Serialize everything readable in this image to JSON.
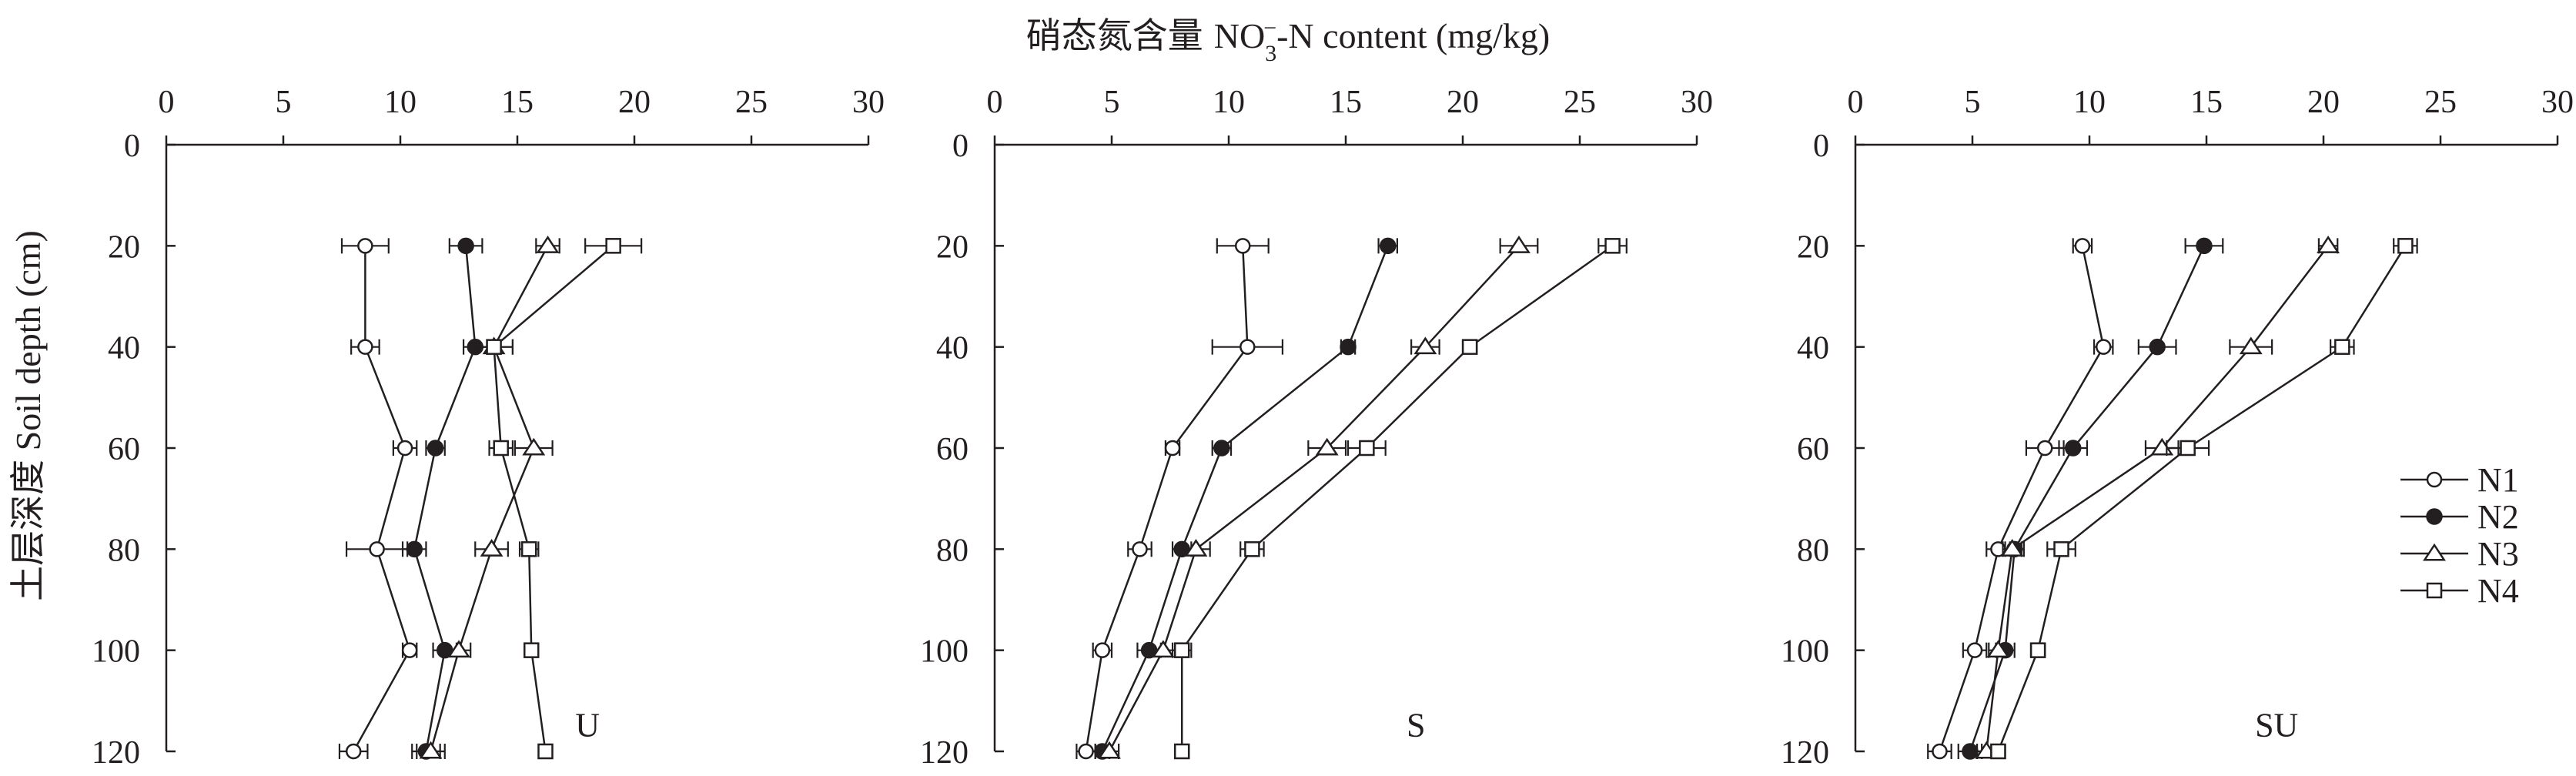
{
  "figure": {
    "title": "硝态氮含量 NO3-N content (mg/kg)",
    "title_parts": {
      "cn": "硝态氮含量",
      "pre": "NO",
      "sub": "3",
      "sup": "−",
      "post": "-N content (mg/kg)"
    },
    "ylabel": "土层深度 Soil depth (cm)",
    "legend_position": "right, beside SU panel",
    "colors": {
      "line": "#231f20",
      "background": "#ffffff"
    }
  },
  "legend": [
    {
      "label": "N1",
      "marker": "open-circle"
    },
    {
      "label": "N2",
      "marker": "filled-circle"
    },
    {
      "label": "N3",
      "marker": "open-triangle"
    },
    {
      "label": "N4",
      "marker": "open-square"
    }
  ],
  "chart_data": [
    {
      "type": "line",
      "panel_label": "U",
      "title": "硝态氮含量 NO3-N content (mg/kg)",
      "xlabel": "硝态氮含量 NO3-N content (mg/kg)",
      "ylabel": "土层深度 Soil depth (cm)",
      "xlim": [
        0,
        30
      ],
      "ylim": [
        0,
        120
      ],
      "x_ticks": [
        0,
        5,
        10,
        15,
        20,
        25,
        30
      ],
      "y_ticks": [
        0,
        20,
        40,
        60,
        80,
        100,
        120
      ],
      "y_inverted": true,
      "grid": false,
      "depth": [
        20,
        40,
        60,
        80,
        100,
        120
      ],
      "series": [
        {
          "name": "N1",
          "marker": "open-circle",
          "values": [
            8.5,
            8.5,
            10.2,
            9.0,
            10.4,
            8.0
          ],
          "errors": [
            1.0,
            0.6,
            0.5,
            1.3,
            0.3,
            0.6
          ]
        },
        {
          "name": "N2",
          "marker": "filled-circle",
          "values": [
            12.8,
            13.2,
            11.5,
            10.6,
            11.9,
            11.1
          ],
          "errors": [
            0.7,
            0.5,
            0.4,
            0.5,
            0.5,
            0.6
          ]
        },
        {
          "name": "N3",
          "marker": "open-triangle",
          "values": [
            16.3,
            14.0,
            15.7,
            13.9,
            12.5,
            11.3
          ],
          "errors": [
            0.5,
            0.8,
            0.8,
            0.7,
            0.5,
            0.6
          ]
        },
        {
          "name": "N4",
          "marker": "open-square",
          "values": [
            19.1,
            14.0,
            14.3,
            15.5,
            15.6,
            16.2
          ],
          "errors": [
            1.2,
            0.8,
            0.5,
            0.4,
            0.2,
            0.2
          ]
        }
      ]
    },
    {
      "type": "line",
      "panel_label": "S",
      "title": "硝态氮含量 NO3-N content (mg/kg)",
      "xlabel": "硝态氮含量 NO3-N content (mg/kg)",
      "ylabel": "土层深度 Soil depth (cm)",
      "xlim": [
        0,
        30
      ],
      "ylim": [
        0,
        120
      ],
      "x_ticks": [
        0,
        5,
        10,
        15,
        20,
        25,
        30
      ],
      "y_ticks": [
        0,
        20,
        40,
        60,
        80,
        100,
        120
      ],
      "y_inverted": true,
      "grid": false,
      "depth": [
        20,
        40,
        60,
        80,
        100,
        120
      ],
      "series": [
        {
          "name": "N1",
          "marker": "open-circle",
          "values": [
            10.6,
            10.8,
            7.6,
            6.2,
            4.6,
            3.9
          ],
          "errors": [
            1.1,
            1.5,
            0.3,
            0.5,
            0.4,
            0.4
          ]
        },
        {
          "name": "N2",
          "marker": "filled-circle",
          "values": [
            16.8,
            15.1,
            9.7,
            8.0,
            6.6,
            4.6
          ],
          "errors": [
            0.4,
            0.3,
            0.4,
            0.4,
            0.5,
            0.3
          ]
        },
        {
          "name": "N3",
          "marker": "open-triangle",
          "values": [
            22.4,
            18.4,
            14.2,
            8.6,
            7.2,
            4.9
          ],
          "errors": [
            0.8,
            0.6,
            0.8,
            0.6,
            0.6,
            0.4
          ]
        },
        {
          "name": "N4",
          "marker": "open-square",
          "values": [
            26.4,
            20.3,
            15.9,
            11.0,
            8.0,
            8.0
          ],
          "errors": [
            0.6,
            0.3,
            0.8,
            0.5,
            0.4,
            0.3
          ]
        }
      ]
    },
    {
      "type": "line",
      "panel_label": "SU",
      "title": "硝态氮含量 NO3-N content (mg/kg)",
      "xlabel": "硝态氮含量 NO3-N content (mg/kg)",
      "ylabel": "土层深度 Soil depth (cm)",
      "xlim": [
        0,
        30
      ],
      "ylim": [
        0,
        120
      ],
      "x_ticks": [
        0,
        5,
        10,
        15,
        20,
        25,
        30
      ],
      "y_ticks": [
        0,
        20,
        40,
        60,
        80,
        100,
        120
      ],
      "y_inverted": true,
      "grid": false,
      "depth": [
        20,
        40,
        60,
        80,
        100,
        120
      ],
      "series": [
        {
          "name": "N1",
          "marker": "open-circle",
          "values": [
            9.7,
            10.6,
            8.1,
            6.1,
            5.1,
            3.6
          ],
          "errors": [
            0.4,
            0.4,
            0.8,
            0.5,
            0.5,
            0.5
          ]
        },
        {
          "name": "N2",
          "marker": "filled-circle",
          "values": [
            14.9,
            12.9,
            9.3,
            6.8,
            6.4,
            4.9
          ],
          "errors": [
            0.8,
            0.8,
            0.6,
            0.4,
            0.4,
            0.5
          ]
        },
        {
          "name": "N3",
          "marker": "open-triangle",
          "values": [
            20.2,
            16.9,
            13.1,
            6.7,
            6.1,
            5.6
          ],
          "errors": [
            0.4,
            0.9,
            0.7,
            0.4,
            0.4,
            0.4
          ]
        },
        {
          "name": "N4",
          "marker": "open-square",
          "values": [
            23.5,
            20.8,
            14.2,
            8.8,
            7.8,
            6.1
          ],
          "errors": [
            0.5,
            0.5,
            0.9,
            0.6,
            0.3,
            0.3
          ]
        }
      ]
    }
  ]
}
